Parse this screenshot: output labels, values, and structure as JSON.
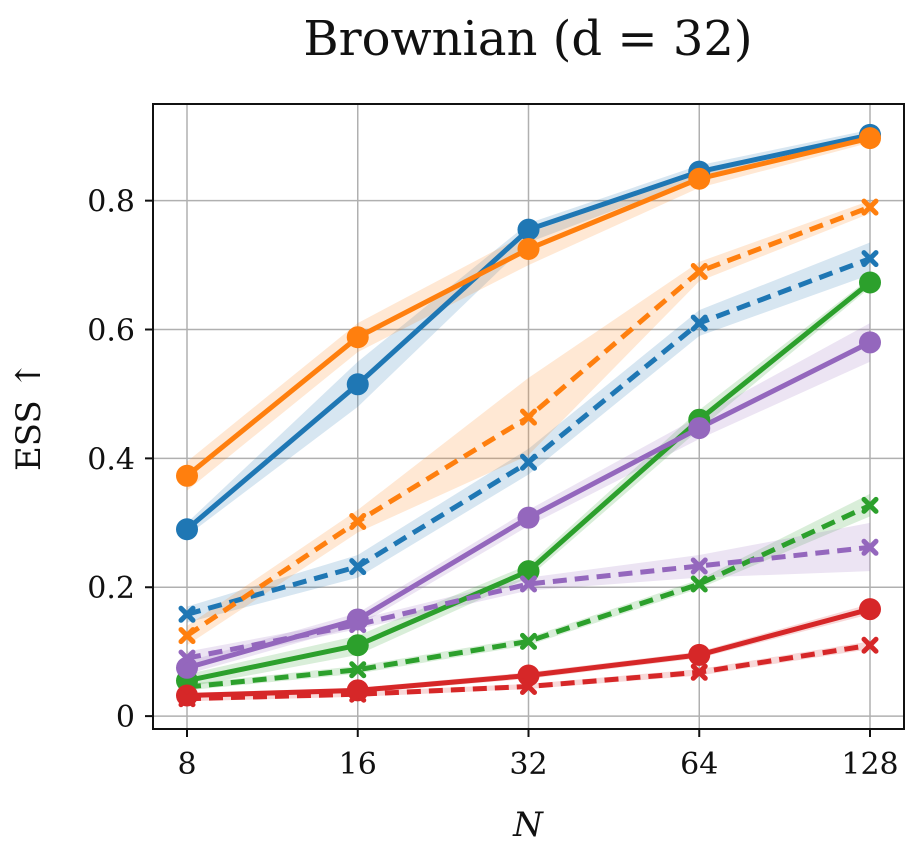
{
  "chart_data": {
    "type": "line",
    "title": "Brownian (d = 32)",
    "xlabel": "N",
    "ylabel": "ESS ↑",
    "x": [
      8,
      16,
      32,
      64,
      128
    ],
    "x_scale": "log2",
    "x_ticks": [
      "8",
      "16",
      "32",
      "64",
      "128"
    ],
    "ylim": [
      -0.02,
      0.95
    ],
    "y_ticks": [
      "0",
      "0.2",
      "0.4",
      "0.6",
      "0.8"
    ],
    "y_tick_values": [
      0,
      0.2,
      0.4,
      0.6,
      0.8
    ],
    "grid": true,
    "series": [
      {
        "color": "#1f77b4",
        "style": "solid",
        "marker": "circle",
        "values": [
          0.29,
          0.515,
          0.755,
          0.845,
          0.902
        ],
        "lower": [
          0.28,
          0.48,
          0.735,
          0.835,
          0.895
        ],
        "upper": [
          0.3,
          0.55,
          0.765,
          0.855,
          0.91
        ]
      },
      {
        "color": "#ff7f0e",
        "style": "solid",
        "marker": "circle",
        "values": [
          0.373,
          0.588,
          0.725,
          0.834,
          0.897
        ],
        "lower": [
          0.35,
          0.565,
          0.7,
          0.82,
          0.89
        ],
        "upper": [
          0.395,
          0.61,
          0.75,
          0.845,
          0.905
        ]
      },
      {
        "color": "#1f77b4",
        "style": "dashed",
        "marker": "x",
        "values": [
          0.158,
          0.232,
          0.394,
          0.61,
          0.71
        ],
        "lower": [
          0.145,
          0.215,
          0.375,
          0.59,
          0.685
        ],
        "upper": [
          0.17,
          0.25,
          0.415,
          0.63,
          0.735
        ]
      },
      {
        "color": "#ff7f0e",
        "style": "dashed",
        "marker": "x",
        "values": [
          0.125,
          0.302,
          0.464,
          0.69,
          0.79
        ],
        "lower": [
          0.11,
          0.285,
          0.405,
          0.675,
          0.78
        ],
        "upper": [
          0.14,
          0.32,
          0.525,
          0.705,
          0.8
        ]
      },
      {
        "color": "#2ca02c",
        "style": "solid",
        "marker": "circle",
        "values": [
          0.055,
          0.11,
          0.225,
          0.46,
          0.673
        ],
        "lower": [
          0.045,
          0.095,
          0.215,
          0.445,
          0.665
        ],
        "upper": [
          0.065,
          0.125,
          0.235,
          0.475,
          0.68
        ]
      },
      {
        "color": "#9467bd",
        "style": "solid",
        "marker": "circle",
        "values": [
          0.075,
          0.15,
          0.308,
          0.447,
          0.58
        ],
        "lower": [
          0.065,
          0.14,
          0.295,
          0.43,
          0.55
        ],
        "upper": [
          0.085,
          0.16,
          0.32,
          0.465,
          0.61
        ]
      },
      {
        "color": "#2ca02c",
        "style": "dashed",
        "marker": "x",
        "values": [
          0.045,
          0.072,
          0.116,
          0.205,
          0.327
        ],
        "lower": [
          0.04,
          0.066,
          0.11,
          0.198,
          0.31
        ],
        "upper": [
          0.05,
          0.078,
          0.122,
          0.212,
          0.345
        ]
      },
      {
        "color": "#9467bd",
        "style": "dashed",
        "marker": "x",
        "values": [
          0.09,
          0.142,
          0.205,
          0.233,
          0.262
        ],
        "lower": [
          0.08,
          0.135,
          0.195,
          0.215,
          0.225
        ],
        "upper": [
          0.1,
          0.15,
          0.215,
          0.25,
          0.3
        ]
      },
      {
        "color": "#d62728",
        "style": "solid",
        "marker": "circle",
        "values": [
          0.032,
          0.04,
          0.063,
          0.095,
          0.166
        ],
        "lower": [
          0.028,
          0.036,
          0.058,
          0.09,
          0.158
        ],
        "upper": [
          0.036,
          0.044,
          0.068,
          0.1,
          0.174
        ]
      },
      {
        "color": "#d62728",
        "style": "dashed",
        "marker": "x",
        "values": [
          0.027,
          0.034,
          0.046,
          0.068,
          0.11
        ],
        "lower": [
          0.023,
          0.03,
          0.042,
          0.063,
          0.104
        ],
        "upper": [
          0.031,
          0.038,
          0.05,
          0.073,
          0.116
        ]
      }
    ]
  }
}
